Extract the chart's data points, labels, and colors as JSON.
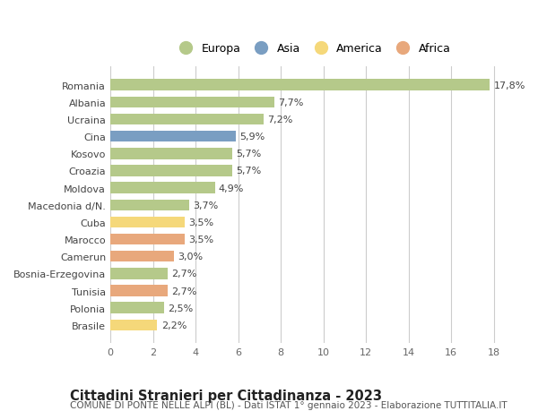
{
  "countries": [
    "Brasile",
    "Polonia",
    "Tunisia",
    "Bosnia-Erzegovina",
    "Camerun",
    "Marocco",
    "Cuba",
    "Macedonia d/N.",
    "Moldova",
    "Croazia",
    "Kosovo",
    "Cina",
    "Ucraina",
    "Albania",
    "Romania"
  ],
  "values": [
    2.2,
    2.5,
    2.7,
    2.7,
    3.0,
    3.5,
    3.5,
    3.7,
    4.9,
    5.7,
    5.7,
    5.9,
    7.2,
    7.7,
    17.8
  ],
  "continents": [
    "America",
    "Europa",
    "Africa",
    "Europa",
    "Africa",
    "Africa",
    "America",
    "Europa",
    "Europa",
    "Europa",
    "Europa",
    "Asia",
    "Europa",
    "Europa",
    "Europa"
  ],
  "continent_colors": {
    "Europa": "#b5c98a",
    "Asia": "#7a9ec2",
    "America": "#f5d87a",
    "Africa": "#e8a87c"
  },
  "legend_order": [
    "Europa",
    "Asia",
    "America",
    "Africa"
  ],
  "legend_colors": [
    "#b5c98a",
    "#7a9ec2",
    "#f5d87a",
    "#e8a87c"
  ],
  "title": "Cittadini Stranieri per Cittadinanza - 2023",
  "subtitle": "COMUNE DI PONTE NELLE ALPI (BL) - Dati ISTAT 1° gennaio 2023 - Elaborazione TUTTITALIA.IT",
  "xlim": [
    0,
    19
  ],
  "xticks": [
    0,
    2,
    4,
    6,
    8,
    10,
    12,
    14,
    16,
    18
  ],
  "background_color": "#ffffff",
  "plot_bg_color": "#ffffff",
  "grid_color": "#cccccc",
  "bar_height": 0.65,
  "title_fontsize": 10.5,
  "subtitle_fontsize": 7.5,
  "label_fontsize": 8,
  "value_fontsize": 8,
  "tick_fontsize": 8,
  "legend_fontsize": 9
}
